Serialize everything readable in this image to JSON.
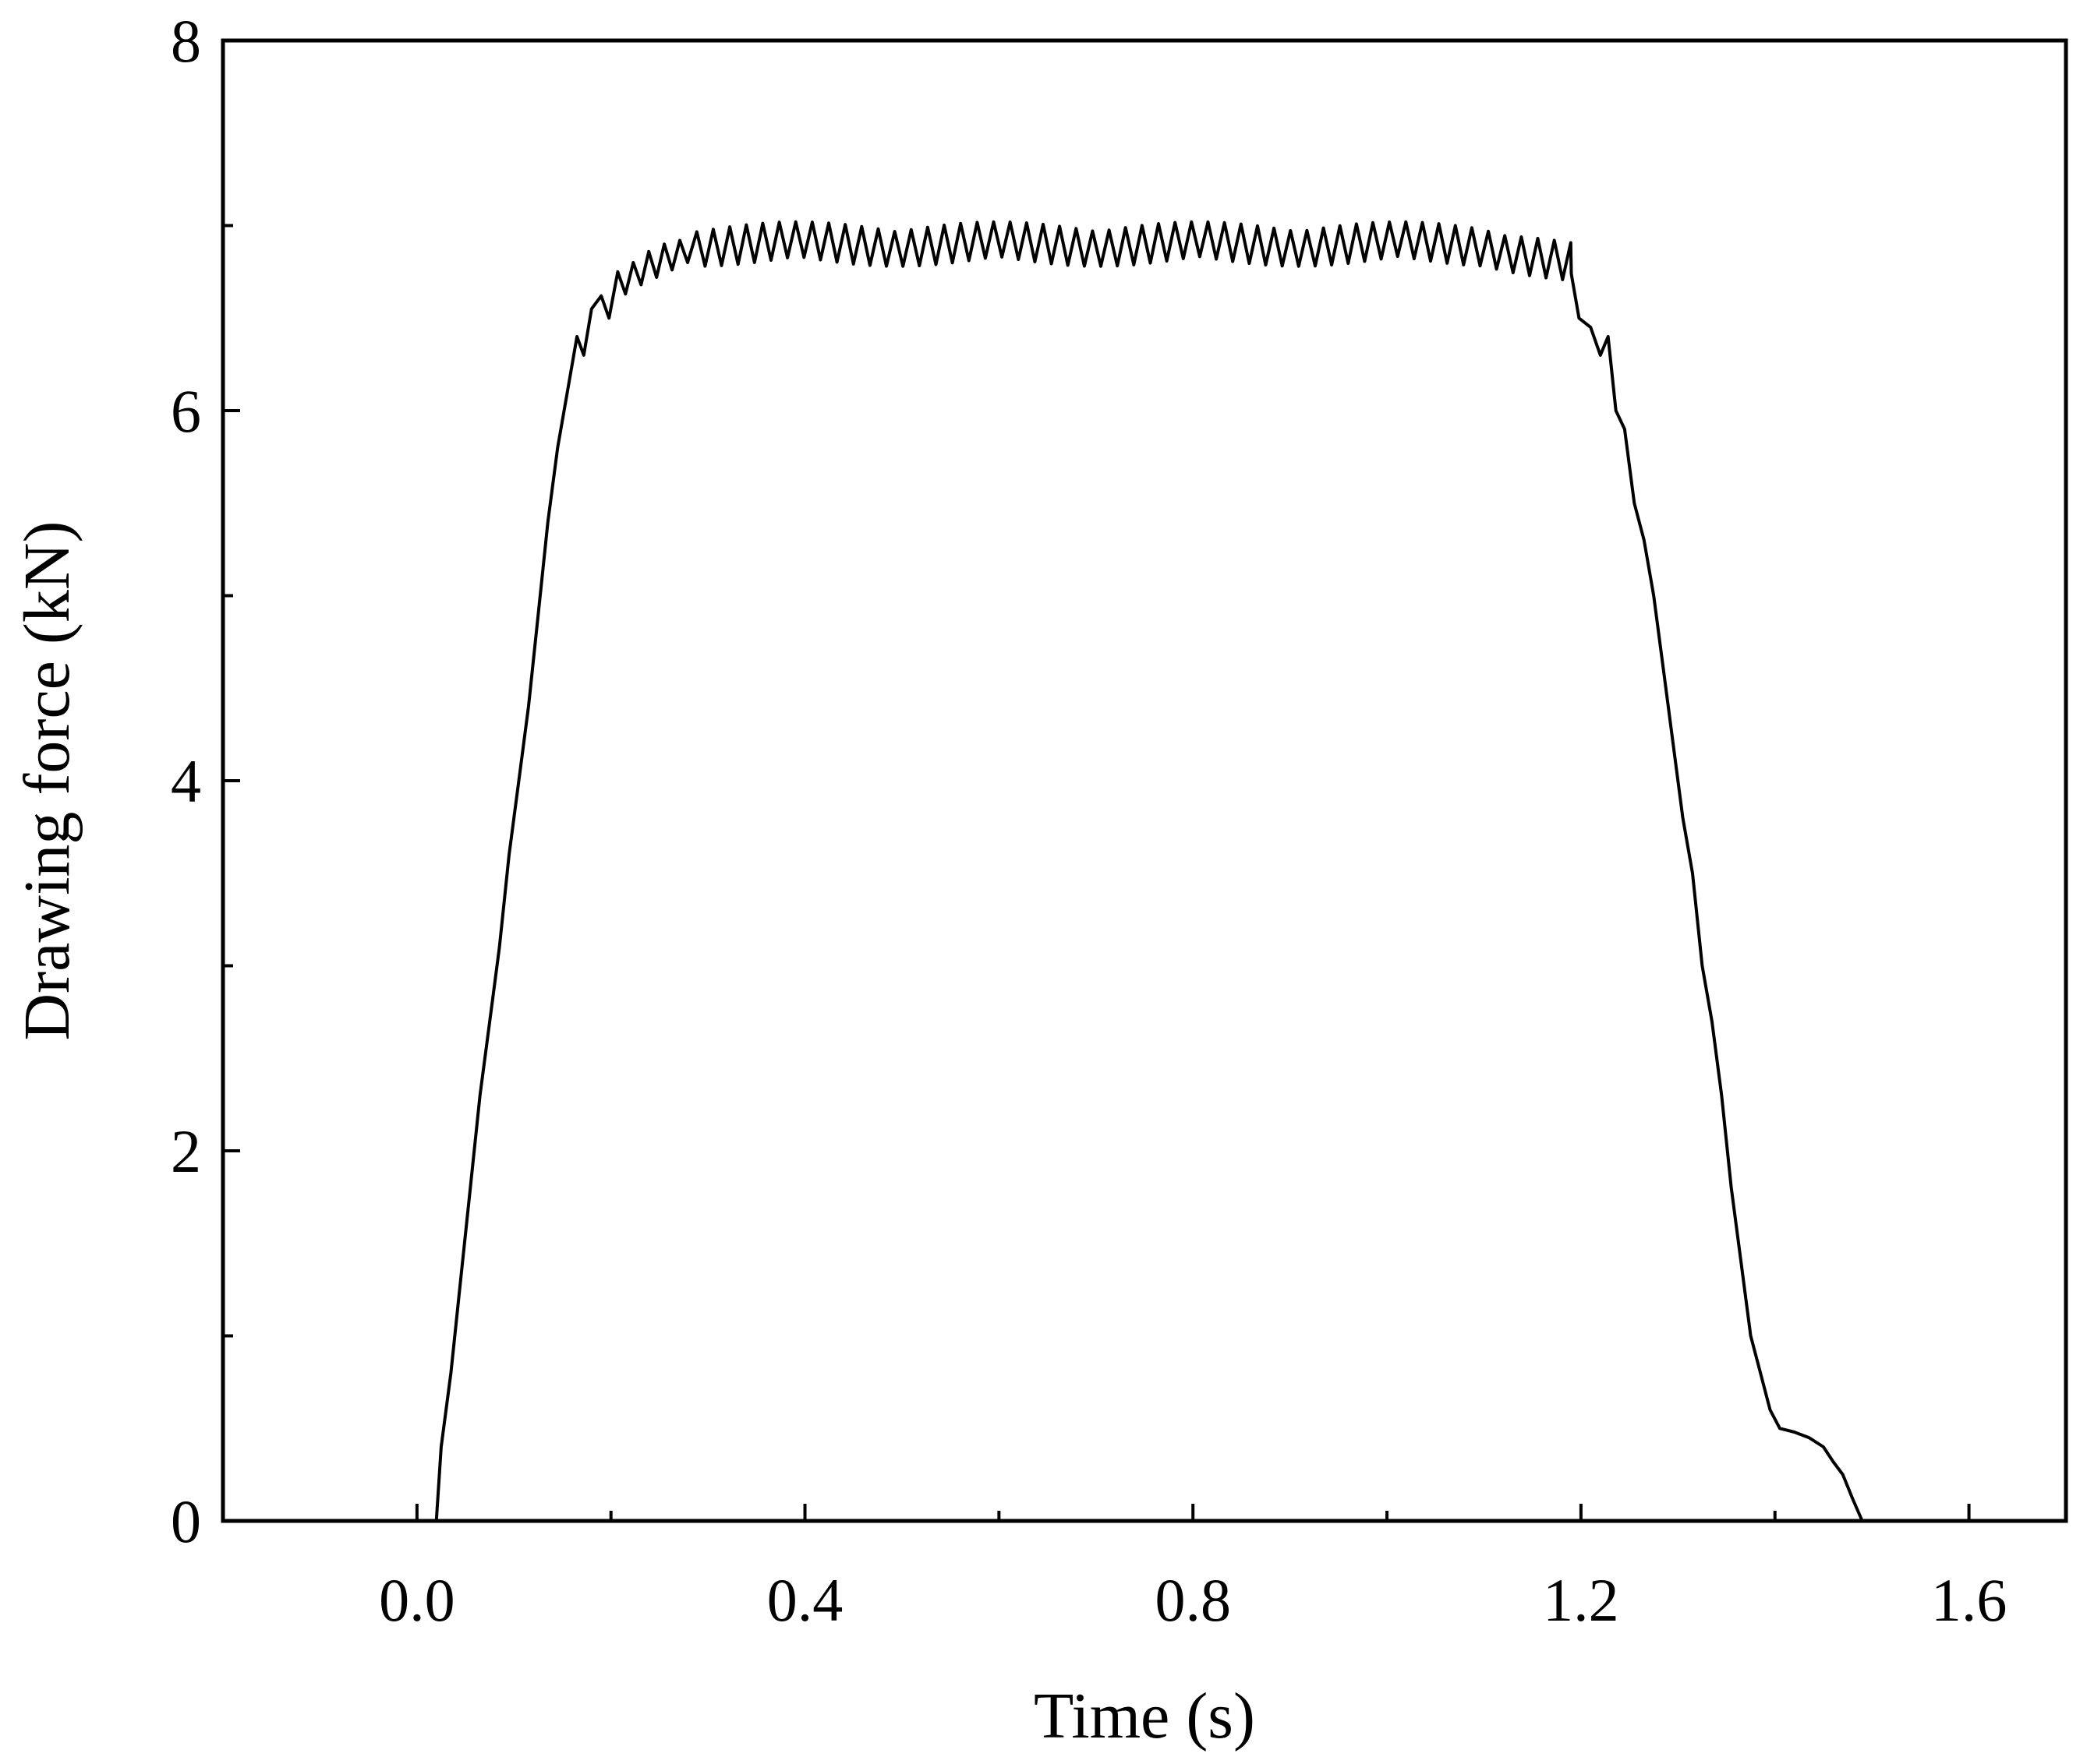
{
  "chart_data": {
    "type": "line",
    "title": "",
    "xlabel": "Time (s)",
    "ylabel": "Drawing force (kN)",
    "xlim": [
      -0.2,
      1.7
    ],
    "ylim": [
      0,
      8
    ],
    "x_ticks": [
      0.0,
      0.4,
      0.8,
      1.2,
      1.6
    ],
    "x_tick_labels": [
      "0.0",
      "0.4",
      "0.8",
      "1.2",
      "1.6"
    ],
    "x_minor_ticks": [
      0.2,
      0.6,
      1.0,
      1.4
    ],
    "y_ticks": [
      0,
      2,
      4,
      6,
      8
    ],
    "y_tick_labels": [
      "0",
      "2",
      "4",
      "6",
      "8"
    ],
    "y_minor_ticks": [
      1,
      3,
      5,
      7
    ],
    "grid": false,
    "legend": "none",
    "line_color": "#000000",
    "series": [
      {
        "points": [
          [
            0.02,
            0.0
          ],
          [
            0.025,
            0.4
          ],
          [
            0.035,
            0.8
          ],
          [
            0.045,
            1.3
          ],
          [
            0.055,
            1.8
          ],
          [
            0.065,
            2.3
          ],
          [
            0.075,
            2.7
          ],
          [
            0.085,
            3.1
          ],
          [
            0.095,
            3.6
          ],
          [
            0.105,
            4.0
          ],
          [
            0.115,
            4.4
          ],
          [
            0.125,
            4.9
          ],
          [
            0.135,
            5.4
          ],
          [
            0.145,
            5.8
          ],
          [
            0.155,
            6.1
          ],
          [
            0.165,
            6.4
          ],
          [
            0.172,
            6.3
          ],
          [
            0.18,
            6.55
          ],
          [
            0.19,
            6.62
          ],
          [
            0.198,
            6.5
          ],
          [
            0.207,
            6.75
          ],
          [
            0.215,
            6.63
          ],
          [
            0.223,
            6.8
          ],
          [
            0.231,
            6.68
          ],
          [
            0.239,
            6.86
          ],
          [
            0.247,
            6.72
          ],
          [
            0.255,
            6.9
          ],
          [
            0.263,
            6.76
          ],
          [
            0.271,
            6.92
          ],
          [
            0.279,
            6.8
          ]
        ],
        "plateau_mean": 6.9,
        "plateau_oscillation": [
          [
            0.28,
            1.19,
            0.12
          ]
        ],
        "points_tail": [
          [
            1.19,
            6.74
          ],
          [
            1.198,
            6.5
          ],
          [
            1.21,
            6.45
          ],
          [
            1.22,
            6.3
          ],
          [
            1.228,
            6.4
          ],
          [
            1.236,
            6.0
          ],
          [
            1.245,
            5.9
          ],
          [
            1.255,
            5.5
          ],
          [
            1.265,
            5.3
          ],
          [
            1.275,
            5.0
          ],
          [
            1.285,
            4.6
          ],
          [
            1.295,
            4.2
          ],
          [
            1.305,
            3.8
          ],
          [
            1.315,
            3.5
          ],
          [
            1.325,
            3.0
          ],
          [
            1.335,
            2.7
          ],
          [
            1.345,
            2.3
          ],
          [
            1.355,
            1.8
          ],
          [
            1.365,
            1.4
          ],
          [
            1.375,
            1.0
          ],
          [
            1.385,
            0.8
          ],
          [
            1.395,
            0.6
          ],
          [
            1.405,
            0.5
          ],
          [
            1.42,
            0.48
          ],
          [
            1.435,
            0.45
          ],
          [
            1.45,
            0.4
          ],
          [
            1.46,
            0.32
          ],
          [
            1.47,
            0.25
          ],
          [
            1.48,
            0.12
          ],
          [
            1.49,
            0.0
          ]
        ]
      }
    ]
  }
}
